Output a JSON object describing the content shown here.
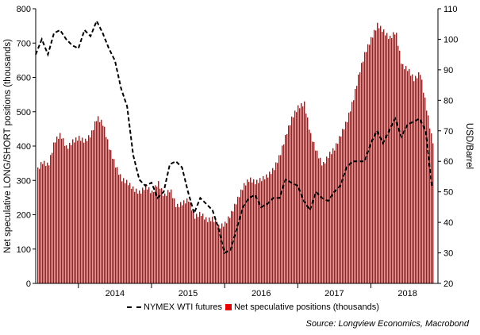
{
  "chart_data": {
    "type": "bar+line",
    "left_axis": {
      "label": "Net speculative LONG/SHORT positions (thousands)",
      "ylim": [
        0,
        800
      ],
      "ticks": [
        "0",
        "100",
        "200",
        "300",
        "400",
        "500",
        "600",
        "700",
        "800"
      ]
    },
    "right_axis": {
      "label": "USD/Barrel",
      "ylim": [
        20,
        110
      ],
      "ticks": [
        "20",
        "30",
        "40",
        "50",
        "60",
        "70",
        "80",
        "90",
        "100",
        "110"
      ]
    },
    "x_axis": {
      "type": "time",
      "range": [
        "2013-06",
        "2018-12"
      ],
      "year_labels": [
        "2014",
        "2015",
        "2016",
        "2017",
        "2018"
      ]
    },
    "series": [
      {
        "name": "Net speculative positions (thousands)",
        "type": "bar",
        "axis": "left",
        "color": "#e00000",
        "x": [
          "2013-06",
          "2013-07",
          "2013-08",
          "2013-09",
          "2013-10",
          "2013-11",
          "2013-12",
          "2014-01",
          "2014-02",
          "2014-03",
          "2014-04",
          "2014-05",
          "2014-06",
          "2014-07",
          "2014-08",
          "2014-09",
          "2014-10",
          "2014-11",
          "2014-12",
          "2015-01",
          "2015-02",
          "2015-03",
          "2015-04",
          "2015-05",
          "2015-06",
          "2015-07",
          "2015-08",
          "2015-09",
          "2015-10",
          "2015-11",
          "2015-12",
          "2016-01",
          "2016-02",
          "2016-03",
          "2016-04",
          "2016-05",
          "2016-06",
          "2016-07",
          "2016-08",
          "2016-09",
          "2016-10",
          "2016-11",
          "2016-12",
          "2017-01",
          "2017-02",
          "2017-03",
          "2017-04",
          "2017-05",
          "2017-06",
          "2017-07",
          "2017-08",
          "2017-09",
          "2017-10",
          "2017-11",
          "2017-12",
          "2018-01",
          "2018-02",
          "2018-03",
          "2018-04",
          "2018-05",
          "2018-06",
          "2018-07",
          "2018-08",
          "2018-09",
          "2018-10",
          "2018-11"
        ],
        "values": [
          330,
          360,
          350,
          420,
          440,
          400,
          420,
          430,
          420,
          440,
          490,
          470,
          400,
          350,
          310,
          300,
          280,
          270,
          290,
          270,
          300,
          260,
          280,
          230,
          240,
          250,
          200,
          210,
          190,
          195,
          170,
          180,
          210,
          250,
          290,
          310,
          300,
          310,
          320,
          340,
          380,
          440,
          490,
          520,
          530,
          440,
          390,
          350,
          380,
          400,
          440,
          480,
          540,
          620,
          680,
          720,
          760,
          740,
          720,
          740,
          640,
          630,
          600,
          620,
          520,
          420
        ]
      },
      {
        "name": "NYMEX WTI futures",
        "type": "line",
        "axis": "right",
        "style": "dashed",
        "color": "#000000",
        "x": [
          "2013-06",
          "2013-07",
          "2013-08",
          "2013-09",
          "2013-10",
          "2013-11",
          "2013-12",
          "2014-01",
          "2014-02",
          "2014-03",
          "2014-04",
          "2014-05",
          "2014-06",
          "2014-07",
          "2014-08",
          "2014-09",
          "2014-10",
          "2014-11",
          "2014-12",
          "2015-01",
          "2015-02",
          "2015-03",
          "2015-04",
          "2015-05",
          "2015-06",
          "2015-07",
          "2015-08",
          "2015-09",
          "2015-10",
          "2015-11",
          "2015-12",
          "2016-01",
          "2016-02",
          "2016-03",
          "2016-04",
          "2016-05",
          "2016-06",
          "2016-07",
          "2016-08",
          "2016-09",
          "2016-10",
          "2016-11",
          "2016-12",
          "2017-01",
          "2017-02",
          "2017-03",
          "2017-04",
          "2017-05",
          "2017-06",
          "2017-07",
          "2017-08",
          "2017-09",
          "2017-10",
          "2017-11",
          "2017-12",
          "2018-01",
          "2018-02",
          "2018-03",
          "2018-04",
          "2018-05",
          "2018-06",
          "2018-07",
          "2018-08",
          "2018-09",
          "2018-10",
          "2018-11"
        ],
        "values": [
          95,
          100,
          95,
          102,
          103,
          100,
          98,
          97,
          103,
          101,
          106,
          102,
          97,
          93,
          84,
          78,
          62,
          54,
          52,
          53,
          48,
          50,
          59,
          60,
          58,
          50,
          43,
          48,
          46,
          44,
          38,
          30,
          31,
          38,
          45,
          48,
          49,
          45,
          46,
          48,
          48,
          54,
          53,
          52,
          47,
          44,
          50,
          48,
          47,
          50,
          52,
          58,
          60,
          60,
          60,
          66,
          70,
          66,
          70,
          74,
          68,
          72,
          73,
          74,
          70,
          52
        ]
      }
    ],
    "legend": [
      "NYMEX WTI futures",
      "Net speculative positions (thousands)"
    ],
    "legend_placement": "bottom",
    "source": "Source: Longview Economics, Macrobond",
    "grid": false
  }
}
